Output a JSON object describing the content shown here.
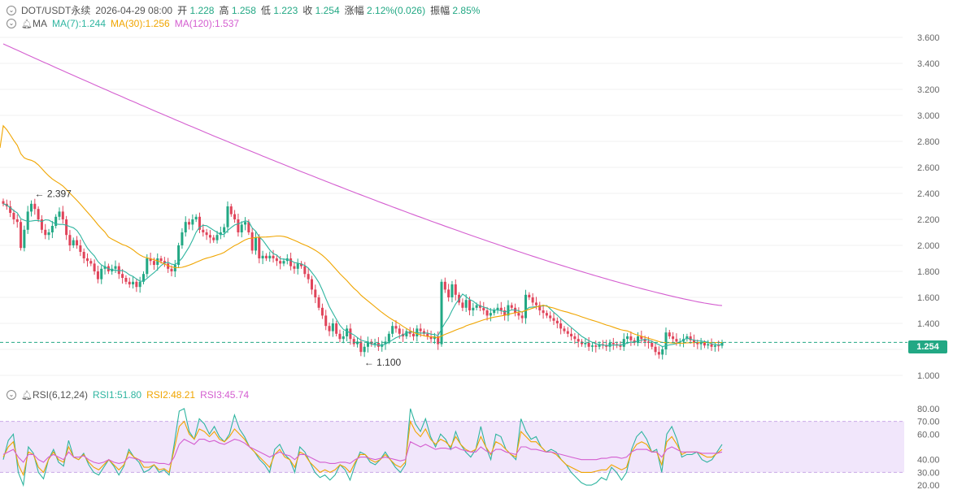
{
  "header": {
    "symbol": "DOT/USDT永续",
    "datetime": "2026-04-29 08:00",
    "open_label": "开",
    "open": "1.228",
    "high_label": "高",
    "high": "1.258",
    "low_label": "低",
    "low": "1.223",
    "close_label": "收",
    "close": "1.254",
    "change_label": "涨幅",
    "change": "2.12%(0.026)",
    "amp_label": "振幅",
    "amp": "2.85%"
  },
  "ma_legend": {
    "name": "MA",
    "ma7": "MA(7):1.244",
    "ma30": "MA(30):1.256",
    "ma120": "MA(120):1.537"
  },
  "rsi_legend": {
    "name": "RSI(6,12,24)",
    "rsi1": "RSI1:51.80",
    "rsi2": "RSI2:48.21",
    "rsi3": "RSI3:45.74"
  },
  "current_price": "1.254",
  "colors": {
    "up": "#22a884",
    "down": "#e0445a",
    "ma7": "#2fb5a0",
    "ma30": "#f0a500",
    "ma120": "#d45ed0"
  },
  "chart_data": [
    {
      "type": "candlestick",
      "title": "",
      "ylim": [
        0.95,
        3.7
      ],
      "yticks": [
        "3.600",
        "3.400",
        "3.200",
        "3.000",
        "2.800",
        "2.600",
        "2.400",
        "2.200",
        "2.000",
        "1.800",
        "1.600",
        "1.400",
        "1.200",
        "1.000"
      ],
      "ytick_values": [
        3.6,
        3.4,
        3.2,
        3.0,
        2.8,
        2.6,
        2.4,
        2.2,
        2.0,
        1.8,
        1.6,
        1.4,
        1.2,
        1.0
      ],
      "annotations": [
        {
          "text": "← 2.397",
          "price": 2.397,
          "candle": 8
        },
        {
          "text": "← 1.100",
          "price": 1.1,
          "candle": 102
        }
      ],
      "last_price": 1.254,
      "closes": [
        2.32,
        2.3,
        2.25,
        2.2,
        2.18,
        1.98,
        2.12,
        2.26,
        2.32,
        2.28,
        2.2,
        2.12,
        2.08,
        2.1,
        2.15,
        2.22,
        2.26,
        2.2,
        2.08,
        2.0,
        2.04,
        2.0,
        1.95,
        1.9,
        1.88,
        1.86,
        1.8,
        1.74,
        1.82,
        1.84,
        1.8,
        1.82,
        1.84,
        1.78,
        1.75,
        1.72,
        1.7,
        1.72,
        1.68,
        1.72,
        1.78,
        1.9,
        1.88,
        1.85,
        1.9,
        1.88,
        1.86,
        1.82,
        1.8,
        1.85,
        2.0,
        2.1,
        2.18,
        2.16,
        2.2,
        2.22,
        2.12,
        2.1,
        2.08,
        2.06,
        2.04,
        2.08,
        2.1,
        2.14,
        2.3,
        2.24,
        2.2,
        2.1,
        2.16,
        2.18,
        2.1,
        1.96,
        2.06,
        1.9,
        1.92,
        1.9,
        1.92,
        1.9,
        1.88,
        1.86,
        1.88,
        1.9,
        1.84,
        1.82,
        1.86,
        1.84,
        1.78,
        1.74,
        1.66,
        1.6,
        1.52,
        1.46,
        1.38,
        1.34,
        1.4,
        1.32,
        1.28,
        1.3,
        1.36,
        1.28,
        1.24,
        1.26,
        1.18,
        1.22,
        1.26,
        1.24,
        1.25,
        1.22,
        1.24,
        1.26,
        1.32,
        1.38,
        1.36,
        1.32,
        1.3,
        1.34,
        1.32,
        1.3,
        1.36,
        1.34,
        1.32,
        1.3,
        1.28,
        1.3,
        1.24,
        1.72,
        1.66,
        1.6,
        1.7,
        1.62,
        1.56,
        1.52,
        1.58,
        1.5,
        1.52,
        1.54,
        1.52,
        1.5,
        1.46,
        1.48,
        1.5,
        1.52,
        1.5,
        1.46,
        1.54,
        1.52,
        1.48,
        1.46,
        1.44,
        1.62,
        1.6,
        1.56,
        1.54,
        1.5,
        1.48,
        1.46,
        1.44,
        1.42,
        1.4,
        1.36,
        1.34,
        1.32,
        1.3,
        1.28,
        1.26,
        1.24,
        1.25,
        1.22,
        1.23,
        1.22,
        1.24,
        1.23,
        1.22,
        1.25,
        1.24,
        1.23,
        1.22,
        1.28,
        1.3,
        1.27,
        1.25,
        1.3,
        1.28,
        1.26,
        1.25,
        1.22,
        1.18,
        1.16,
        1.2,
        1.33,
        1.3,
        1.28,
        1.26,
        1.26,
        1.28,
        1.3,
        1.27,
        1.25,
        1.24,
        1.25,
        1.23,
        1.24,
        1.22,
        1.23,
        1.228,
        1.254
      ],
      "ma7_start_y": 2.1,
      "ma120_start_y": 3.55
    },
    {
      "type": "line",
      "title": "",
      "ylim": [
        15,
        85
      ],
      "yticks": [
        "80.00",
        "70.00",
        "60.00",
        "40.00",
        "30.00",
        "20.00"
      ],
      "ytick_values": [
        80,
        70,
        60,
        40,
        30,
        20
      ],
      "band": [
        30,
        70
      ],
      "series": [
        {
          "name": "RSI1",
          "color": "#2fb5a0",
          "values": [
            40,
            55,
            60,
            30,
            20,
            50,
            45,
            30,
            25,
            40,
            48,
            38,
            35,
            55,
            42,
            40,
            45,
            36,
            30,
            28,
            34,
            40,
            35,
            28,
            35,
            48,
            42,
            38,
            30,
            32,
            36,
            30,
            32,
            28,
            52,
            78,
            80,
            62,
            56,
            72,
            68,
            60,
            66,
            58,
            54,
            60,
            75,
            64,
            58,
            50,
            46,
            40,
            36,
            30,
            48,
            52,
            44,
            40,
            30,
            50,
            46,
            38,
            30,
            26,
            28,
            24,
            28,
            36,
            32,
            24,
            36,
            46,
            44,
            38,
            36,
            40,
            46,
            40,
            34,
            30,
            36,
            80,
            68,
            62,
            72,
            58,
            50,
            60,
            56,
            48,
            62,
            52,
            46,
            42,
            48,
            66,
            50,
            40,
            60,
            58,
            48,
            44,
            40,
            72,
            62,
            56,
            58,
            50,
            46,
            48,
            46,
            40,
            36,
            30,
            26,
            22,
            20,
            20,
            22,
            26,
            24,
            34,
            30,
            24,
            30,
            48,
            58,
            62,
            56,
            46,
            48,
            30,
            60,
            66,
            56,
            42,
            44,
            44,
            46,
            40,
            38,
            40,
            46,
            52
          ]
        },
        {
          "name": "RSI2",
          "color": "#f0a500",
          "values": [
            42,
            50,
            54,
            36,
            28,
            46,
            44,
            34,
            30,
            40,
            46,
            40,
            38,
            50,
            42,
            40,
            44,
            38,
            34,
            32,
            36,
            40,
            36,
            32,
            36,
            46,
            42,
            40,
            34,
            34,
            36,
            32,
            33,
            30,
            48,
            66,
            70,
            60,
            56,
            64,
            62,
            58,
            62,
            56,
            54,
            58,
            64,
            60,
            56,
            50,
            46,
            42,
            38,
            34,
            44,
            48,
            42,
            40,
            34,
            46,
            44,
            38,
            34,
            30,
            32,
            30,
            32,
            36,
            34,
            30,
            38,
            44,
            44,
            40,
            38,
            40,
            44,
            40,
            36,
            34,
            38,
            70,
            62,
            58,
            64,
            56,
            52,
            56,
            54,
            50,
            58,
            52,
            48,
            46,
            48,
            58,
            50,
            44,
            54,
            52,
            48,
            44,
            42,
            62,
            58,
            54,
            54,
            50,
            46,
            46,
            44,
            40,
            36,
            34,
            32,
            30,
            30,
            30,
            31,
            32,
            32,
            36,
            34,
            32,
            34,
            46,
            52,
            54,
            52,
            46,
            46,
            36,
            54,
            58,
            52,
            44,
            46,
            46,
            46,
            44,
            42,
            42,
            45,
            48
          ]
        },
        {
          "name": "RSI3",
          "color": "#d45ed0",
          "values": [
            44,
            46,
            48,
            42,
            38,
            44,
            44,
            40,
            38,
            42,
            44,
            42,
            40,
            46,
            42,
            42,
            43,
            40,
            38,
            37,
            38,
            40,
            38,
            37,
            38,
            42,
            41,
            40,
            38,
            38,
            38,
            37,
            37,
            36,
            42,
            52,
            56,
            54,
            52,
            56,
            56,
            54,
            55,
            53,
            52,
            54,
            56,
            55,
            53,
            50,
            48,
            46,
            44,
            42,
            44,
            46,
            44,
            43,
            40,
            44,
            44,
            42,
            40,
            38,
            38,
            37,
            37,
            38,
            38,
            37,
            40,
            42,
            42,
            41,
            40,
            41,
            42,
            41,
            40,
            39,
            40,
            54,
            52,
            50,
            52,
            50,
            48,
            49,
            49,
            48,
            50,
            48,
            47,
            46,
            46,
            50,
            47,
            45,
            48,
            48,
            46,
            45,
            44,
            50,
            50,
            48,
            48,
            47,
            46,
            46,
            45,
            44,
            43,
            42,
            41,
            40,
            40,
            40,
            40,
            41,
            41,
            42,
            42,
            41,
            42,
            46,
            48,
            48,
            48,
            46,
            46,
            42,
            48,
            50,
            48,
            46,
            46,
            46,
            46,
            45,
            45,
            45,
            45,
            46
          ]
        }
      ]
    }
  ]
}
